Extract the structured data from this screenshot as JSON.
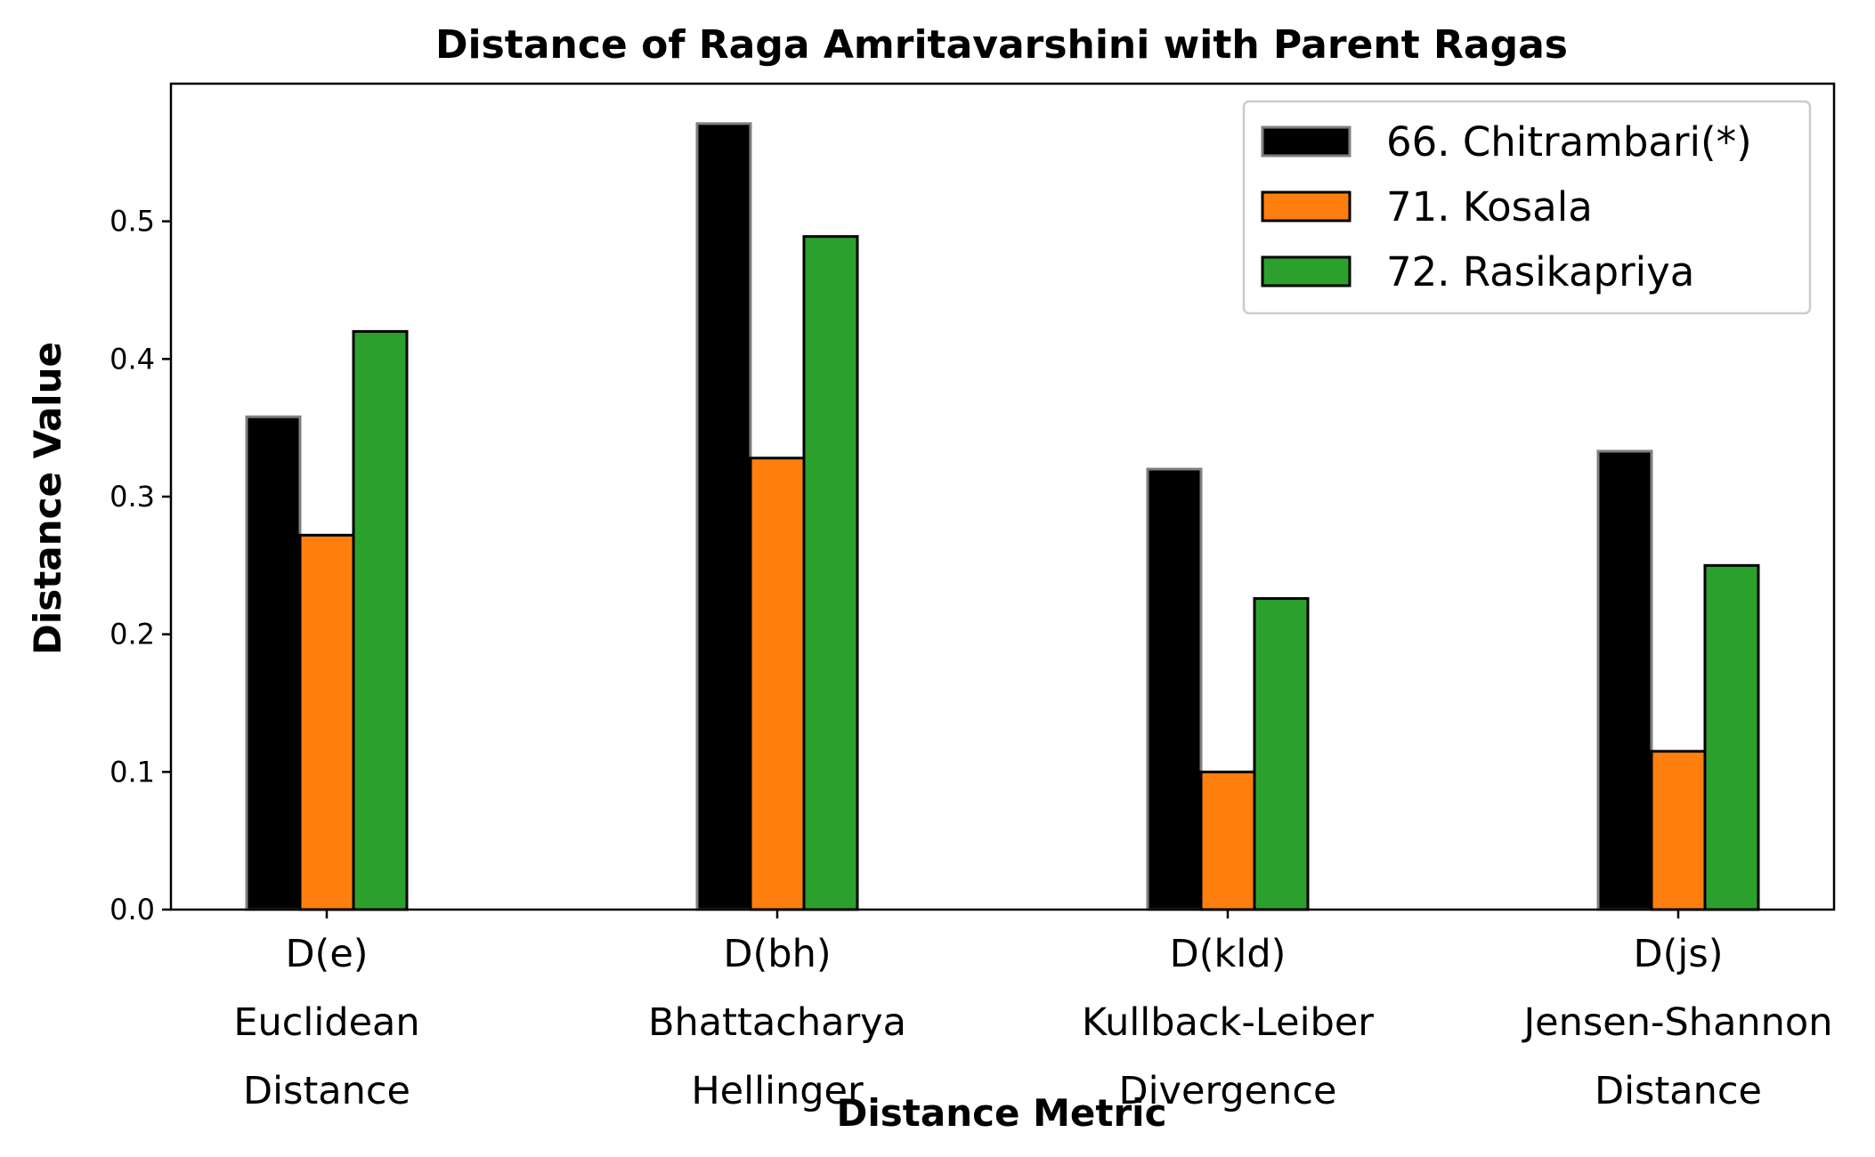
{
  "chart_data": {
    "type": "bar",
    "title": "Distance of Raga Amritavarshini with Parent Ragas",
    "xlabel": "Distance Metric",
    "ylabel": "Distance Value",
    "ylim": [
      0,
      0.6
    ],
    "yticks": [
      "0.0",
      "0.1",
      "0.2",
      "0.3",
      "0.4",
      "0.5"
    ],
    "grid": false,
    "legend_position": "top-right",
    "categories": [
      [
        "D(e)",
        "Euclidean",
        "Distance"
      ],
      [
        "D(bh)",
        "Bhattacharya",
        "Hellinger"
      ],
      [
        "D(kld)",
        "Kullback-Leiber",
        "Divergence"
      ],
      [
        "D(js)",
        "Jensen-Shannon",
        "Distance"
      ]
    ],
    "series": [
      {
        "name": "66. Chitrambari(*)",
        "color": "#000000",
        "edge": "#808080",
        "values": [
          0.358,
          0.571,
          0.32,
          0.333
        ]
      },
      {
        "name": "71. Kosala",
        "color": "#ff7f0e",
        "edge": "#000000",
        "values": [
          0.272,
          0.328,
          0.1,
          0.115
        ]
      },
      {
        "name": "72. Rasikapriya",
        "color": "#2ca02c",
        "edge": "#000000",
        "values": [
          0.42,
          0.489,
          0.226,
          0.25
        ]
      }
    ]
  }
}
